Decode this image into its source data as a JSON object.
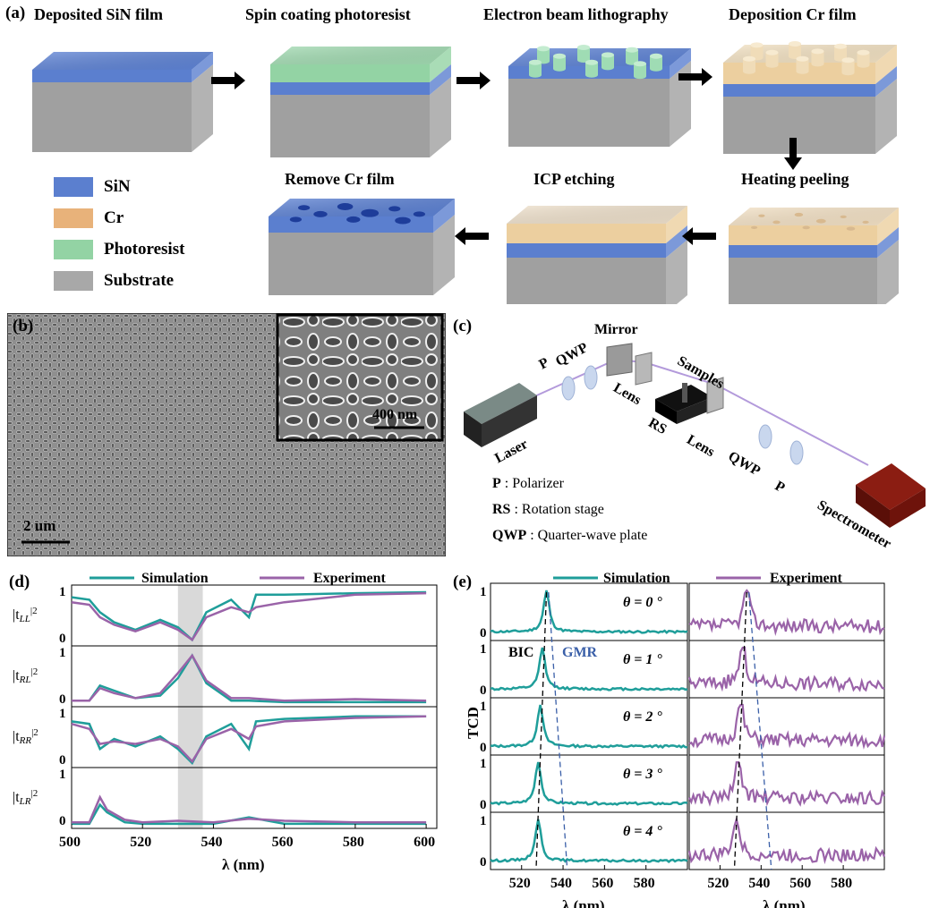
{
  "panel_a": {
    "label": "(a)",
    "steps": [
      "Deposited SiN film",
      "Spin coating  photoresist",
      "Electron beam lithography",
      "Deposition Cr film",
      "Heating peeling",
      "ICP etching",
      "Remove Cr film"
    ],
    "legend": [
      {
        "label": "SiN",
        "color": "#5b7fcf"
      },
      {
        "label": "Cr",
        "color": "#e8b27a"
      },
      {
        "label": "Photoresist",
        "color": "#93d3a4"
      },
      {
        "label": "Substrate",
        "color": "#a8a8a8"
      }
    ]
  },
  "panel_b": {
    "label": "(b)",
    "scale_main": "2 um",
    "scale_inset": "400 nm"
  },
  "panel_c": {
    "label": "(c)",
    "components": [
      "Mirror",
      "P",
      "QWP",
      "Lens",
      "Samples",
      "RS",
      "Lens",
      "QWP",
      "P",
      "Laser",
      "Spectrometer"
    ],
    "abbrev": [
      {
        "key": "P",
        "sep": " : ",
        "desc": "Polarizer"
      },
      {
        "key": "RS",
        "sep": " : ",
        "desc": "Rotation stage"
      },
      {
        "key": "QWP",
        "sep": " : ",
        "desc": "Quarter-wave plate"
      }
    ]
  },
  "panel_d": {
    "label": "(d)",
    "legend": [
      "Simulation",
      "Experiment"
    ],
    "ylabels": [
      "|tLL|²",
      "|tRL|²",
      "|tRR|²",
      "|tLR|²"
    ],
    "ylabel_main": [
      "|t",
      "LL",
      "|2",
      "RL",
      "RR",
      "LR"
    ],
    "xlabel": "λ (nm)",
    "xticks": [
      "500",
      "520",
      "540",
      "560",
      "580",
      "600"
    ],
    "ytick_labels": [
      "1",
      "0"
    ]
  },
  "panel_e": {
    "label": "(e)",
    "legend": [
      "Simulation",
      "Experiment"
    ],
    "ylabel": "TCD",
    "xlabel": "λ (nm)",
    "angles": [
      "θ = 0 °",
      "θ = 1 °",
      "θ = 2 °",
      "θ = 3 °",
      "θ = 4 °"
    ],
    "xticks": [
      "520",
      "540",
      "560",
      "580"
    ],
    "annotations": [
      "BIC",
      "GMR"
    ],
    "ytick_labels": [
      "1",
      "0"
    ]
  },
  "colors": {
    "simulation": "#1f9e9a",
    "experiment": "#9a63a8",
    "highlight": "#d9d9d9"
  },
  "chart_data": [
    {
      "type": "line",
      "title": "",
      "xlabel": "λ (nm)",
      "xlim": [
        500,
        603
      ],
      "series": [
        {
          "name": "Simulation",
          "panel": "|tLL|²",
          "x": [
            500,
            505,
            508,
            512,
            518,
            525,
            530,
            534,
            538,
            545,
            550,
            552,
            560,
            580,
            600
          ],
          "y": [
            0.9,
            0.85,
            0.6,
            0.4,
            0.25,
            0.45,
            0.3,
            0.05,
            0.6,
            0.85,
            0.5,
            0.95,
            0.95,
            0.98,
            1.0
          ]
        },
        {
          "name": "Experiment",
          "panel": "|tLL|²",
          "x": [
            500,
            505,
            508,
            512,
            518,
            525,
            530,
            534,
            538,
            545,
            550,
            552,
            560,
            580,
            600
          ],
          "y": [
            0.8,
            0.75,
            0.5,
            0.35,
            0.22,
            0.4,
            0.25,
            0.05,
            0.5,
            0.7,
            0.6,
            0.7,
            0.8,
            0.95,
            0.98
          ]
        },
        {
          "name": "Simulation",
          "panel": "|tRL|²",
          "x": [
            500,
            505,
            508,
            512,
            518,
            525,
            530,
            534,
            538,
            545,
            550,
            560,
            580,
            600
          ],
          "y": [
            0.05,
            0.05,
            0.35,
            0.25,
            0.1,
            0.15,
            0.5,
            0.95,
            0.4,
            0.05,
            0.05,
            0.02,
            0.02,
            0.02
          ]
        },
        {
          "name": "Experiment",
          "panel": "|tRL|²",
          "x": [
            500,
            505,
            508,
            512,
            518,
            525,
            530,
            534,
            538,
            545,
            550,
            560,
            580,
            600
          ],
          "y": [
            0.05,
            0.05,
            0.3,
            0.2,
            0.1,
            0.2,
            0.6,
            0.95,
            0.45,
            0.1,
            0.1,
            0.05,
            0.08,
            0.05
          ]
        },
        {
          "name": "Simulation",
          "panel": "|tRR|²",
          "x": [
            500,
            505,
            508,
            512,
            518,
            525,
            530,
            534,
            538,
            545,
            550,
            552,
            560,
            580,
            600
          ],
          "y": [
            0.85,
            0.8,
            0.3,
            0.5,
            0.35,
            0.55,
            0.3,
            0.02,
            0.55,
            0.8,
            0.3,
            0.85,
            0.9,
            0.95,
            0.95
          ]
        },
        {
          "name": "Experiment",
          "panel": "|tRR|²",
          "x": [
            500,
            505,
            508,
            512,
            518,
            525,
            530,
            534,
            538,
            545,
            550,
            552,
            560,
            580,
            600
          ],
          "y": [
            0.8,
            0.7,
            0.4,
            0.45,
            0.4,
            0.5,
            0.35,
            0.05,
            0.5,
            0.7,
            0.5,
            0.75,
            0.85,
            0.92,
            0.95
          ]
        },
        {
          "name": "Simulation",
          "panel": "|tLR|²",
          "x": [
            500,
            505,
            508,
            510,
            515,
            520,
            530,
            540,
            550,
            560,
            580,
            600
          ],
          "y": [
            0.02,
            0.02,
            0.4,
            0.25,
            0.05,
            0.02,
            0.02,
            0.02,
            0.15,
            0.02,
            0.02,
            0.02
          ]
        },
        {
          "name": "Experiment",
          "panel": "|tLR|²",
          "x": [
            500,
            505,
            508,
            510,
            515,
            520,
            530,
            540,
            550,
            560,
            580,
            600
          ],
          "y": [
            0.05,
            0.05,
            0.55,
            0.3,
            0.1,
            0.05,
            0.08,
            0.05,
            0.12,
            0.08,
            0.05,
            0.05
          ]
        }
      ]
    },
    {
      "type": "line",
      "title": "",
      "ylabel": "TCD",
      "xlabel": "λ (nm)",
      "xlim": [
        505,
        600
      ],
      "series": [
        {
          "name": "Simulation",
          "angle": 0,
          "peak_nm": 532
        },
        {
          "name": "Simulation",
          "angle": 1,
          "peak_nm": 530
        },
        {
          "name": "Simulation",
          "angle": 2,
          "peak_nm": 529
        },
        {
          "name": "Simulation",
          "angle": 3,
          "peak_nm": 528
        },
        {
          "name": "Simulation",
          "angle": 4,
          "peak_nm": 528
        },
        {
          "name": "Experiment",
          "angle": 0,
          "peak_nm": 533
        },
        {
          "name": "Experiment",
          "angle": 1,
          "peak_nm": 531
        },
        {
          "name": "Experiment",
          "angle": 2,
          "peak_nm": 530
        },
        {
          "name": "Experiment",
          "angle": 3,
          "peak_nm": 529
        },
        {
          "name": "Experiment",
          "angle": 4,
          "peak_nm": 528
        }
      ]
    }
  ]
}
